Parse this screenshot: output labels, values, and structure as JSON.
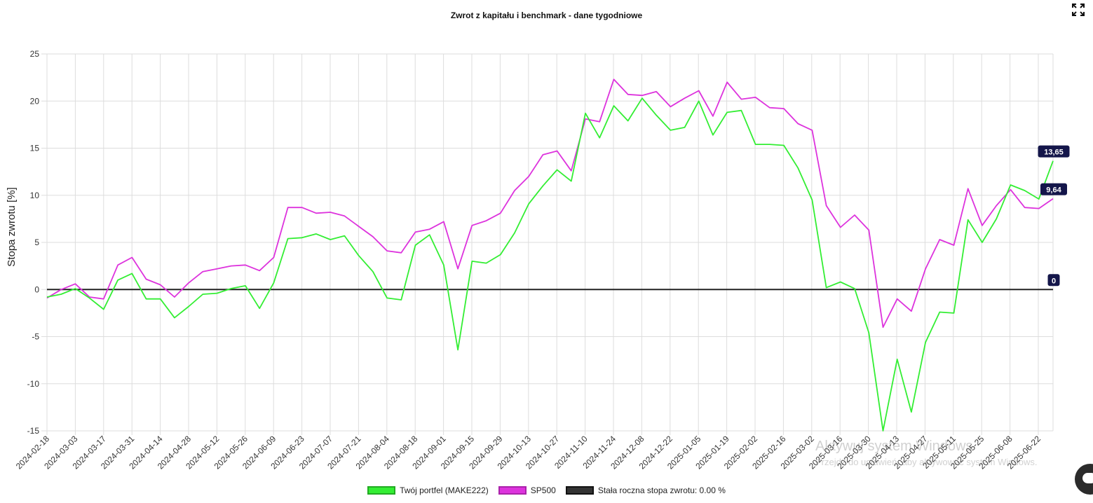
{
  "page": {
    "expand_icon": "expand-icon",
    "watermark_line1": "Aktywuj system Windows",
    "watermark_line2": "Przejdź do ustawień, aby aktywować system Windows.",
    "chat_icon": "chat-icon"
  },
  "chart_data": {
    "type": "line",
    "title": "Zwrot z kapitału i benchmark - dane tygodniowe",
    "xlabel": "",
    "ylabel": "Stopa zwrotu [%]",
    "ylim": [
      -15,
      25
    ],
    "yticks": [
      -15,
      -10,
      -5,
      0,
      5,
      10,
      15,
      20,
      25
    ],
    "grid": true,
    "legend_position": "bottom",
    "x_tick_labels": [
      "2024-02-18",
      "2024-03-03",
      "2024-03-17",
      "2024-03-31",
      "2024-04-14",
      "2024-04-28",
      "2024-05-12",
      "2024-05-26",
      "2024-06-09",
      "2024-06-23",
      "2024-07-07",
      "2024-07-21",
      "2024-08-04",
      "2024-08-18",
      "2024-09-01",
      "2024-09-15",
      "2024-09-29",
      "2024-10-13",
      "2024-10-27",
      "2024-11-10",
      "2024-11-24",
      "2024-12-08",
      "2024-12-22",
      "2025-01-05",
      "2025-01-19",
      "2025-02-02",
      "2025-02-16",
      "2025-03-02",
      "2025-03-16",
      "2025-03-30",
      "2025-04-13",
      "2025-04-27",
      "2025-05-11",
      "2025-05-25",
      "2025-06-08",
      "2025-06-22"
    ],
    "series": [
      {
        "name": "Twój portfel (MAKE222)",
        "color": "#33ee33",
        "last_value_label": "13,65",
        "values": [
          -0.8,
          -0.5,
          0.1,
          -0.9,
          -2.1,
          1.0,
          1.7,
          -1.0,
          -1.0,
          -3.0,
          -1.8,
          -0.5,
          -0.4,
          0.1,
          0.4,
          -2.0,
          0.7,
          5.4,
          5.5,
          5.9,
          5.3,
          5.7,
          3.6,
          1.9,
          -0.9,
          -1.1,
          4.7,
          5.8,
          2.6,
          -6.4,
          3.0,
          2.8,
          3.7,
          6.0,
          9.1,
          11.0,
          12.7,
          11.5,
          18.7,
          16.1,
          19.5,
          17.9,
          20.3,
          18.5,
          16.9,
          17.2,
          20.0,
          16.4,
          18.8,
          19.0,
          15.4,
          15.4,
          15.3,
          12.9,
          9.5,
          0.2,
          0.8,
          0.1,
          -4.6,
          -15.0,
          -7.4,
          -13.0,
          -5.6,
          -2.4,
          -2.5,
          7.4,
          5.0,
          7.5,
          11.1,
          10.5,
          9.6,
          13.65
        ]
      },
      {
        "name": "SP500",
        "color": "#dd33dd",
        "last_value_label": "9,64",
        "values": [
          -0.9,
          0.0,
          0.6,
          -0.8,
          -1.0,
          2.6,
          3.4,
          1.1,
          0.5,
          -0.8,
          0.7,
          1.9,
          2.2,
          2.5,
          2.6,
          2.0,
          3.4,
          8.7,
          8.7,
          8.1,
          8.2,
          7.8,
          6.7,
          5.6,
          4.1,
          3.9,
          6.1,
          6.4,
          7.2,
          2.2,
          6.8,
          7.3,
          8.1,
          10.5,
          12.0,
          14.3,
          14.7,
          12.6,
          18.1,
          17.8,
          22.3,
          20.7,
          20.6,
          21.0,
          19.4,
          20.3,
          21.1,
          18.4,
          22.0,
          20.2,
          20.4,
          19.3,
          19.2,
          17.6,
          16.9,
          8.9,
          6.6,
          7.9,
          6.3,
          -4.0,
          -1.0,
          -2.3,
          2.2,
          5.3,
          4.7,
          10.7,
          6.8,
          8.9,
          10.6,
          8.7,
          8.6,
          9.64
        ]
      },
      {
        "name": "Stała roczna stopa zwrotu: 0.00 %",
        "color": "#222222",
        "last_value_label": "0",
        "values": [
          0,
          0,
          0,
          0,
          0,
          0,
          0,
          0,
          0,
          0,
          0,
          0,
          0,
          0,
          0,
          0,
          0,
          0,
          0,
          0,
          0,
          0,
          0,
          0,
          0,
          0,
          0,
          0,
          0,
          0,
          0,
          0,
          0,
          0,
          0,
          0,
          0,
          0,
          0,
          0,
          0,
          0,
          0,
          0,
          0,
          0,
          0,
          0,
          0,
          0,
          0,
          0,
          0,
          0,
          0,
          0,
          0,
          0,
          0,
          0,
          0,
          0,
          0,
          0,
          0,
          0,
          0,
          0,
          0,
          0,
          0,
          0
        ]
      }
    ]
  }
}
